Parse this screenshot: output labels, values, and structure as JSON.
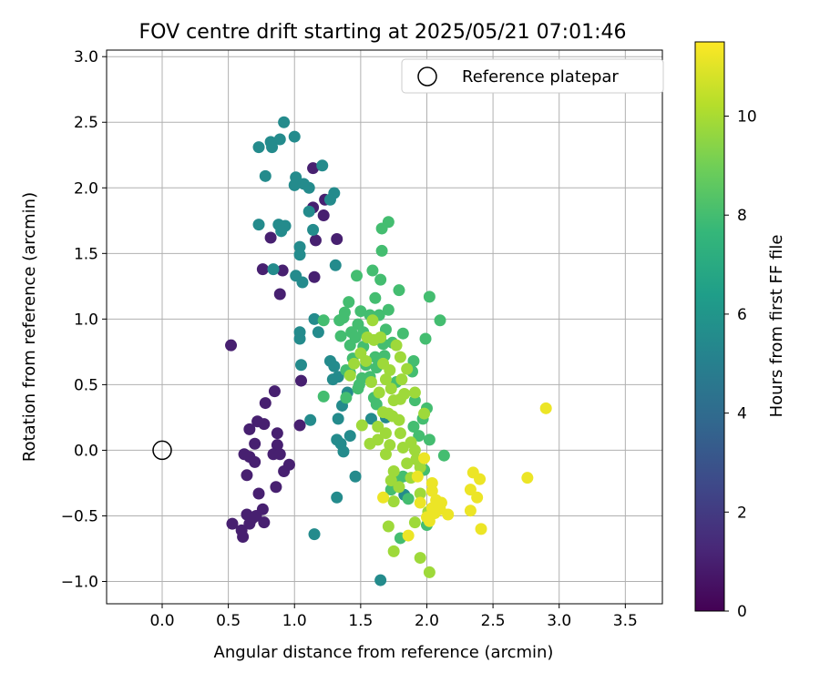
{
  "chart_data": {
    "type": "scatter",
    "title": "FOV centre drift starting at 2025/05/21 07:01:46",
    "xlabel": "Angular distance from reference (arcmin)",
    "ylabel": "Rotation from reference (arcmin)",
    "xlim": [
      -0.42,
      3.78
    ],
    "ylim": [
      -1.17,
      3.05
    ],
    "xticks": [
      "0.0",
      "0.5",
      "1.0",
      "1.5",
      "2.0",
      "2.5",
      "3.0",
      "3.5"
    ],
    "yticks": [
      "−1.0",
      "−0.5",
      "0.0",
      "0.5",
      "1.0",
      "1.5",
      "2.0",
      "2.5",
      "3.0"
    ],
    "grid": true,
    "legend": {
      "placement": "top-right",
      "entries": [
        "Reference platepar"
      ]
    },
    "reference_point": {
      "x": 0.0,
      "y": 0.0,
      "marker": "hollow-circle"
    },
    "colorbar": {
      "label": "Hours from first FF file",
      "colormap": "viridis",
      "range": [
        0,
        11.5
      ],
      "ticks": [
        "0",
        "2",
        "4",
        "6",
        "8",
        "10"
      ]
    },
    "color_stops": [
      "#440154",
      "#482878",
      "#3e4989",
      "#31688e",
      "#26828e",
      "#1f9e89",
      "#35b779",
      "#6ece58",
      "#b5de2b",
      "#fde725"
    ],
    "series": [
      {
        "values": [
          [
            1.14,
            2.15
          ],
          [
            1.23,
            1.91
          ],
          [
            1.32,
            1.61
          ],
          [
            0.82,
            1.62
          ],
          [
            0.76,
            1.38
          ],
          [
            0.91,
            1.37
          ],
          [
            0.89,
            1.19
          ],
          [
            1.15,
            1.32
          ],
          [
            1.16,
            1.6
          ],
          [
            1.14,
            1.85
          ],
          [
            1.22,
            1.79
          ],
          [
            1.05,
            0.53
          ],
          [
            0.92,
            -0.16
          ],
          [
            0.85,
            0.45
          ],
          [
            0.78,
            0.36
          ],
          [
            0.77,
            0.2
          ],
          [
            0.72,
            0.22
          ],
          [
            0.66,
            0.16
          ],
          [
            0.87,
            0.13
          ],
          [
            0.87,
            0.04
          ],
          [
            0.84,
            -0.03
          ],
          [
            0.89,
            -0.03
          ],
          [
            0.7,
            0.05
          ],
          [
            0.62,
            -0.03
          ],
          [
            0.66,
            -0.05
          ],
          [
            0.7,
            -0.09
          ],
          [
            0.86,
            -0.28
          ],
          [
            0.73,
            -0.33
          ],
          [
            0.64,
            -0.19
          ],
          [
            0.52,
            0.8
          ],
          [
            0.53,
            -0.56
          ],
          [
            0.6,
            -0.61
          ],
          [
            0.61,
            -0.66
          ],
          [
            0.64,
            -0.49
          ],
          [
            0.66,
            -0.56
          ],
          [
            0.71,
            -0.5
          ],
          [
            0.76,
            -0.45
          ],
          [
            0.77,
            -0.55
          ],
          [
            0.68,
            -0.52
          ],
          [
            0.96,
            -0.11
          ],
          [
            1.04,
            0.19
          ]
        ]
      },
      {
        "values": [
          [
            0.92,
            2.5
          ],
          [
            1.0,
            2.39
          ],
          [
            0.89,
            2.37
          ],
          [
            0.82,
            2.35
          ],
          [
            0.83,
            2.31
          ],
          [
            0.73,
            2.31
          ],
          [
            0.78,
            2.09
          ],
          [
            1.01,
            2.08
          ],
          [
            1.07,
            2.03
          ],
          [
            1.0,
            2.02
          ],
          [
            1.11,
            2.0
          ],
          [
            1.21,
            2.17
          ],
          [
            1.3,
            1.96
          ],
          [
            1.27,
            1.91
          ],
          [
            1.11,
            1.82
          ],
          [
            1.14,
            1.68
          ],
          [
            0.93,
            1.71
          ],
          [
            0.88,
            1.72
          ],
          [
            0.9,
            1.67
          ],
          [
            0.73,
            1.72
          ],
          [
            1.04,
            1.55
          ],
          [
            1.04,
            1.49
          ],
          [
            1.06,
            1.28
          ],
          [
            0.84,
            1.38
          ],
          [
            1.01,
            1.33
          ],
          [
            1.31,
            1.41
          ],
          [
            1.15,
            1.0
          ],
          [
            1.04,
            0.9
          ],
          [
            1.04,
            0.85
          ],
          [
            1.18,
            0.9
          ],
          [
            1.05,
            0.65
          ],
          [
            1.27,
            0.68
          ],
          [
            1.3,
            0.64
          ],
          [
            1.33,
            0.56
          ],
          [
            1.29,
            0.54
          ],
          [
            1.4,
            0.44
          ],
          [
            1.36,
            0.34
          ],
          [
            1.33,
            0.24
          ],
          [
            1.12,
            0.23
          ],
          [
            1.42,
            0.11
          ],
          [
            1.35,
            0.05
          ],
          [
            1.37,
            -0.01
          ],
          [
            1.32,
            0.08
          ],
          [
            1.15,
            -0.64
          ],
          [
            1.32,
            -0.36
          ],
          [
            1.46,
            -0.2
          ],
          [
            1.65,
            -0.99
          ],
          [
            1.58,
            0.24
          ],
          [
            1.69,
            0.25
          ],
          [
            1.83,
            -0.34
          ]
        ]
      },
      {
        "values": [
          [
            1.66,
            1.69
          ],
          [
            1.71,
            1.74
          ],
          [
            1.66,
            1.52
          ],
          [
            1.59,
            1.37
          ],
          [
            1.65,
            1.3
          ],
          [
            1.47,
            1.33
          ],
          [
            1.61,
            1.16
          ],
          [
            1.41,
            1.13
          ],
          [
            1.38,
            1.05
          ],
          [
            1.5,
            1.06
          ],
          [
            1.48,
            0.96
          ],
          [
            1.52,
            0.9
          ],
          [
            1.42,
            0.8
          ],
          [
            1.35,
            0.87
          ],
          [
            1.44,
            0.7
          ],
          [
            1.39,
            0.61
          ],
          [
            1.42,
            0.59
          ],
          [
            1.22,
            0.41
          ],
          [
            1.39,
            0.4
          ],
          [
            1.6,
            0.4
          ],
          [
            1.62,
            0.35
          ],
          [
            1.49,
            0.5
          ],
          [
            1.51,
            0.55
          ],
          [
            1.69,
            0.92
          ],
          [
            1.74,
            0.82
          ],
          [
            2.02,
            1.17
          ],
          [
            2.1,
            0.99
          ],
          [
            1.99,
            0.85
          ],
          [
            1.9,
            0.68
          ],
          [
            1.89,
            0.6
          ],
          [
            1.82,
            0.89
          ],
          [
            1.79,
            1.22
          ],
          [
            1.71,
            1.07
          ],
          [
            1.77,
            0.52
          ],
          [
            1.91,
            0.38
          ],
          [
            2.0,
            0.32
          ],
          [
            1.97,
            0.24
          ],
          [
            1.9,
            0.18
          ],
          [
            1.94,
            0.11
          ],
          [
            2.02,
            0.08
          ],
          [
            1.98,
            -0.15
          ],
          [
            1.73,
            -0.3
          ],
          [
            1.82,
            -0.2
          ],
          [
            1.78,
            -0.23
          ],
          [
            2.0,
            -0.57
          ],
          [
            1.86,
            -0.37
          ],
          [
            2.13,
            -0.04
          ],
          [
            1.8,
            -0.67
          ],
          [
            1.48,
            0.47
          ],
          [
            1.57,
            0.56
          ],
          [
            1.67,
            0.81
          ],
          [
            1.68,
            0.72
          ],
          [
            1.22,
            0.99
          ],
          [
            1.34,
            0.99
          ],
          [
            1.52,
            0.79
          ],
          [
            1.43,
            0.9
          ],
          [
            1.46,
            0.86
          ],
          [
            1.54,
            0.65
          ],
          [
            1.61,
            0.71
          ],
          [
            1.64,
            1.03
          ],
          [
            1.57,
            1.03
          ],
          [
            1.62,
            0.63
          ],
          [
            1.37,
            1.01
          ]
        ]
      },
      {
        "values": [
          [
            1.8,
            0.39
          ],
          [
            1.77,
            0.8
          ],
          [
            1.73,
            0.47
          ],
          [
            1.81,
            0.54
          ],
          [
            1.69,
            0.54
          ],
          [
            1.83,
            0.43
          ],
          [
            1.8,
            0.71
          ],
          [
            1.85,
            0.62
          ],
          [
            1.75,
            0.38
          ],
          [
            1.71,
            0.28
          ],
          [
            1.63,
            0.18
          ],
          [
            1.63,
            0.08
          ],
          [
            1.51,
            0.19
          ],
          [
            1.57,
            0.05
          ],
          [
            1.69,
            -0.03
          ],
          [
            1.72,
            0.04
          ],
          [
            1.8,
            0.13
          ],
          [
            1.82,
            0.02
          ],
          [
            1.85,
            -0.1
          ],
          [
            1.75,
            -0.16
          ],
          [
            1.73,
            -0.23
          ],
          [
            1.79,
            -0.28
          ],
          [
            1.75,
            -0.39
          ],
          [
            1.71,
            -0.58
          ],
          [
            1.75,
            -0.77
          ],
          [
            1.91,
            0.0
          ],
          [
            1.92,
            -0.07
          ],
          [
            1.95,
            -0.13
          ],
          [
            1.88,
            -0.21
          ],
          [
            1.95,
            -0.33
          ],
          [
            2.01,
            -0.47
          ],
          [
            1.91,
            -0.55
          ],
          [
            1.95,
            -0.82
          ],
          [
            2.02,
            -0.93
          ],
          [
            1.59,
            0.99
          ],
          [
            1.55,
            0.86
          ],
          [
            1.6,
            0.84
          ],
          [
            1.65,
            0.86
          ],
          [
            1.67,
            0.66
          ],
          [
            1.72,
            0.61
          ],
          [
            1.45,
            0.66
          ],
          [
            1.5,
            0.74
          ],
          [
            1.54,
            0.68
          ],
          [
            1.42,
            0.57
          ],
          [
            1.58,
            0.52
          ],
          [
            1.64,
            0.44
          ],
          [
            1.67,
            0.29
          ],
          [
            1.74,
            0.26
          ],
          [
            1.79,
            0.23
          ],
          [
            1.91,
            0.44
          ],
          [
            1.98,
            0.28
          ],
          [
            1.69,
            0.13
          ],
          [
            1.88,
            0.06
          ]
        ]
      },
      {
        "values": [
          [
            2.9,
            0.32
          ],
          [
            2.76,
            -0.21
          ],
          [
            2.35,
            -0.17
          ],
          [
            2.4,
            -0.22
          ],
          [
            2.33,
            -0.3
          ],
          [
            2.38,
            -0.36
          ],
          [
            2.41,
            -0.6
          ],
          [
            2.33,
            -0.46
          ],
          [
            2.16,
            -0.49
          ],
          [
            2.1,
            -0.45
          ],
          [
            2.11,
            -0.4
          ],
          [
            2.07,
            -0.38
          ],
          [
            2.04,
            -0.31
          ],
          [
            2.04,
            -0.44
          ],
          [
            2.02,
            -0.54
          ],
          [
            2.0,
            -0.51
          ],
          [
            2.04,
            -0.25
          ],
          [
            1.98,
            -0.06
          ],
          [
            1.86,
            -0.65
          ],
          [
            1.93,
            -0.2
          ],
          [
            1.95,
            -0.4
          ],
          [
            1.67,
            -0.36
          ],
          [
            2.06,
            -0.48
          ]
        ]
      }
    ],
    "series_hours": [
      1.0,
      5.5,
      8.0,
      9.8,
      11.2
    ]
  }
}
